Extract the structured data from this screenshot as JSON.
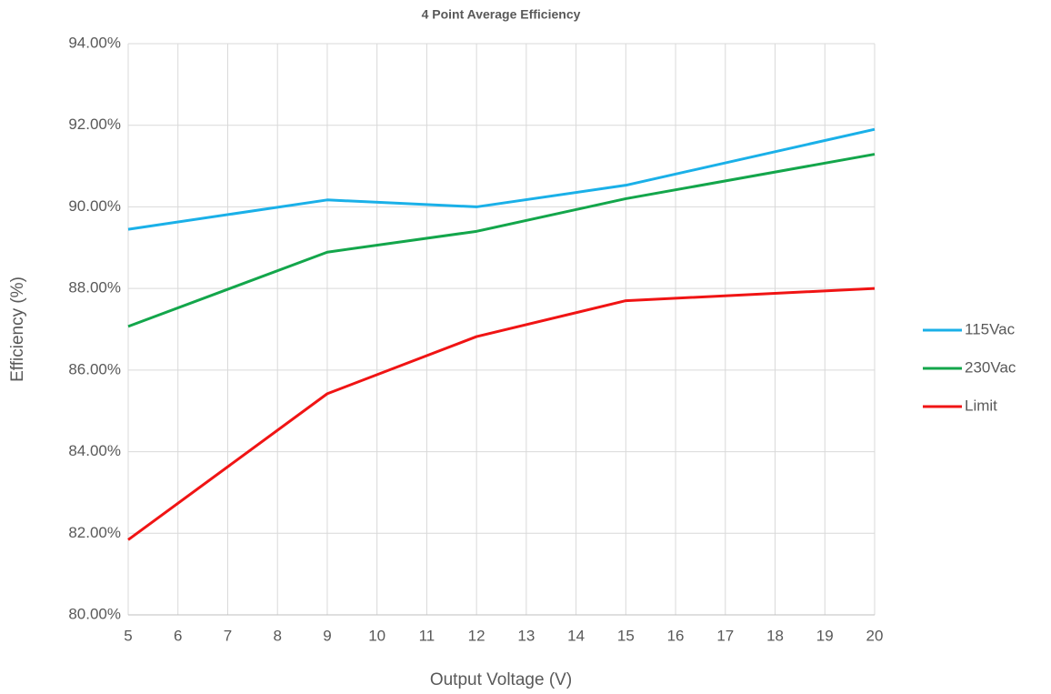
{
  "chart_data": {
    "type": "line",
    "title": "4 Point Average Efficiency",
    "x_label": "Output Voltage (V)",
    "y_label": "Efficiency (%)",
    "x": [
      5,
      9,
      12,
      15,
      20
    ],
    "series": [
      {
        "name": "115Vac",
        "color": "#1ab0e8",
        "values": [
          89.45,
          90.17,
          90.0,
          90.53,
          91.9
        ]
      },
      {
        "name": "230Vac",
        "color": "#13a64b",
        "values": [
          87.07,
          88.89,
          89.4,
          90.2,
          91.29
        ]
      },
      {
        "name": "Limit",
        "color": "#f01414",
        "values": [
          81.84,
          85.42,
          86.82,
          87.7,
          88.0
        ]
      }
    ],
    "xlim": [
      5,
      20
    ],
    "xticks": [
      5,
      6,
      7,
      8,
      9,
      10,
      11,
      12,
      13,
      14,
      15,
      16,
      17,
      18,
      19,
      20
    ],
    "ylim": [
      80,
      94
    ],
    "yticks": [
      {
        "value": 80,
        "label": "80.00%"
      },
      {
        "value": 82,
        "label": "82.00%"
      },
      {
        "value": 84,
        "label": "84.00%"
      },
      {
        "value": 86,
        "label": "86.00%"
      },
      {
        "value": 88,
        "label": "88.00%"
      },
      {
        "value": 90,
        "label": "90.00%"
      },
      {
        "value": 92,
        "label": "92.00%"
      },
      {
        "value": 94,
        "label": "94.00%"
      }
    ],
    "grid": true,
    "legend": "right"
  }
}
